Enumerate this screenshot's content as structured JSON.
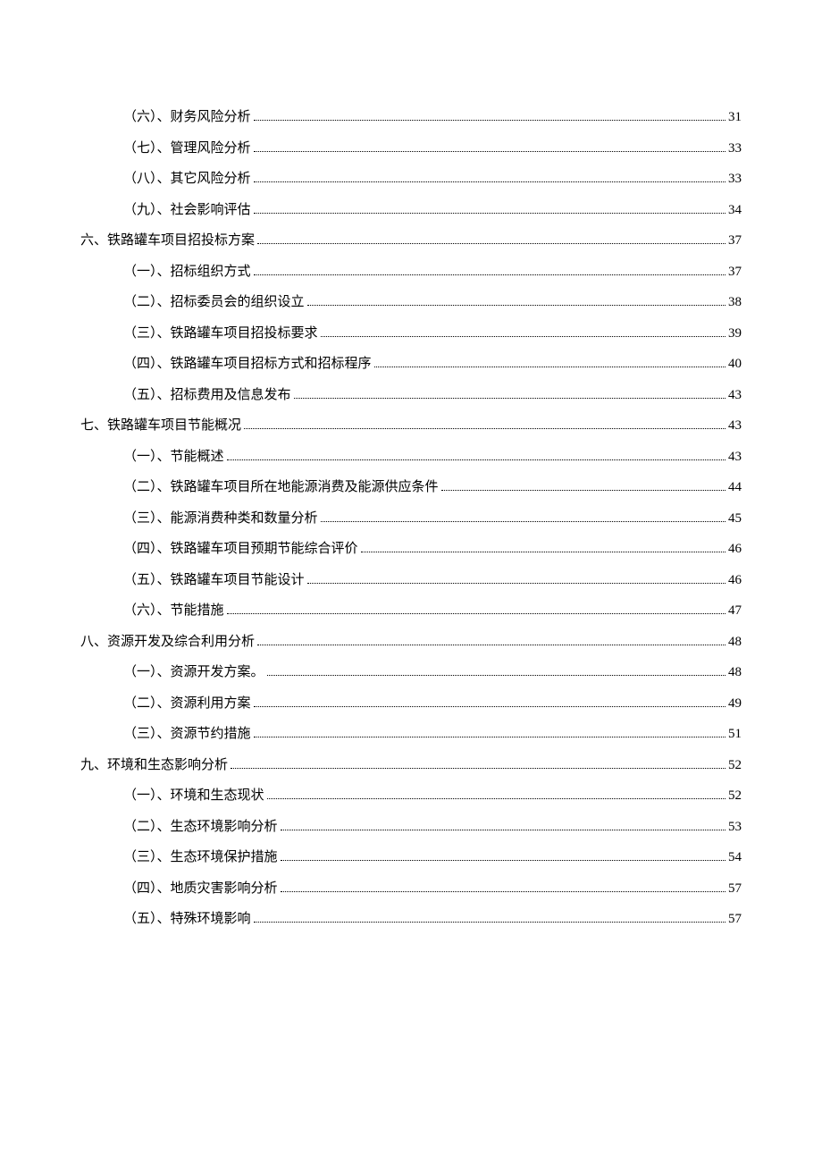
{
  "entries": [
    {
      "level": 2,
      "label": "（六）、财务风险分析",
      "page": "31"
    },
    {
      "level": 2,
      "label": "（七）、管理风险分析",
      "page": "33"
    },
    {
      "level": 2,
      "label": "（八）、其它风险分析",
      "page": "33"
    },
    {
      "level": 2,
      "label": "（九）、社会影响评估",
      "page": "34"
    },
    {
      "level": 1,
      "label": "六、铁路罐车项目招投标方案",
      "page": "37"
    },
    {
      "level": 2,
      "label": "（一）、招标组织方式",
      "page": "37"
    },
    {
      "level": 2,
      "label": "（二）、招标委员会的组织设立",
      "page": "38"
    },
    {
      "level": 2,
      "label": "（三）、铁路罐车项目招投标要求",
      "page": "39"
    },
    {
      "level": 2,
      "label": "（四）、铁路罐车项目招标方式和招标程序",
      "page": "40"
    },
    {
      "level": 2,
      "label": "（五）、招标费用及信息发布",
      "page": "43"
    },
    {
      "level": 1,
      "label": "七、铁路罐车项目节能概况",
      "page": "43"
    },
    {
      "level": 2,
      "label": "（一）、节能概述",
      "page": "43"
    },
    {
      "level": 2,
      "label": "（二）、铁路罐车项目所在地能源消费及能源供应条件",
      "page": "44"
    },
    {
      "level": 2,
      "label": "（三）、能源消费种类和数量分析",
      "page": "45"
    },
    {
      "level": 2,
      "label": "（四）、铁路罐车项目预期节能综合评价",
      "page": "46"
    },
    {
      "level": 2,
      "label": "（五）、铁路罐车项目节能设计",
      "page": "46"
    },
    {
      "level": 2,
      "label": "（六）、节能措施",
      "page": "47"
    },
    {
      "level": 1,
      "label": "八、资源开发及综合利用分析",
      "page": "48"
    },
    {
      "level": 2,
      "label": "（一）、资源开发方案。",
      "page": "48"
    },
    {
      "level": 2,
      "label": "（二）、资源利用方案",
      "page": "49"
    },
    {
      "level": 2,
      "label": "（三）、资源节约措施",
      "page": "51"
    },
    {
      "level": 1,
      "label": "九、环境和生态影响分析",
      "page": "52"
    },
    {
      "level": 2,
      "label": "（一）、环境和生态现状",
      "page": "52"
    },
    {
      "level": 2,
      "label": "（二）、生态环境影响分析",
      "page": "53"
    },
    {
      "level": 2,
      "label": "（三）、生态环境保护措施",
      "page": "54"
    },
    {
      "level": 2,
      "label": "（四）、地质灾害影响分析",
      "page": "57"
    },
    {
      "level": 2,
      "label": "（五）、特殊环境影响",
      "page": "57"
    }
  ]
}
